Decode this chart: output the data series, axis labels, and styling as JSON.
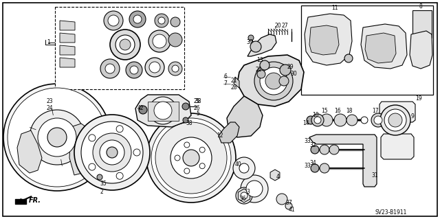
{
  "bg_color": "#ffffff",
  "diagram_code": "SV23-B1911",
  "fr_label": "FR.",
  "figsize": [
    6.4,
    3.19
  ],
  "dpi": 100
}
